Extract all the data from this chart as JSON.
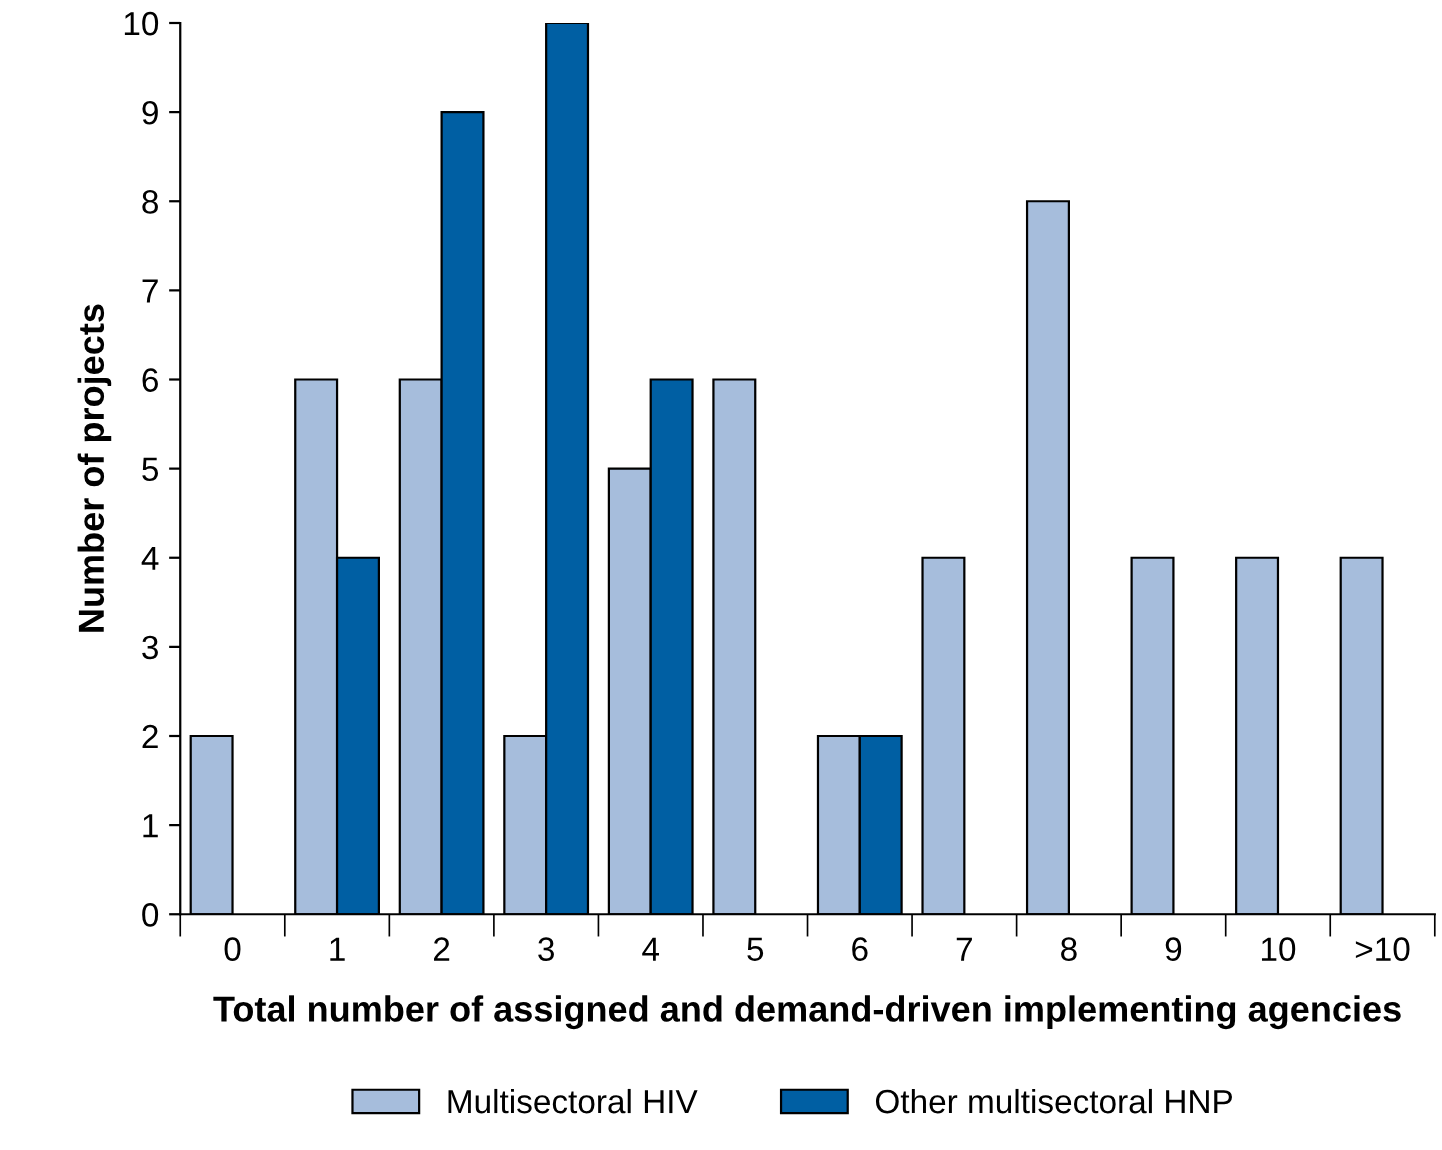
{
  "chart_data": {
    "type": "bar",
    "xlabel": "Total number of assigned and demand-driven implementing agencies",
    "ylabel": "Number of projects",
    "categories": [
      "0",
      "1",
      "2",
      "3",
      "4",
      "5",
      "6",
      "7",
      "8",
      "9",
      "10",
      ">10"
    ],
    "series": [
      {
        "name": "Multisectoral HIV",
        "color": "#a6bddc",
        "values": [
          2,
          6,
          6,
          2,
          5,
          6,
          2,
          4,
          8,
          4,
          4,
          4
        ]
      },
      {
        "name": "Other multisectoral HNP",
        "color": "#005fa3",
        "values": [
          null,
          4,
          9,
          10,
          6,
          null,
          2,
          null,
          null,
          null,
          null,
          null
        ]
      }
    ],
    "ylim": [
      0,
      10
    ],
    "yticks": [
      0,
      1,
      2,
      3,
      4,
      5,
      6,
      7,
      8,
      9,
      10
    ],
    "grid": false,
    "legend": "bottom"
  }
}
